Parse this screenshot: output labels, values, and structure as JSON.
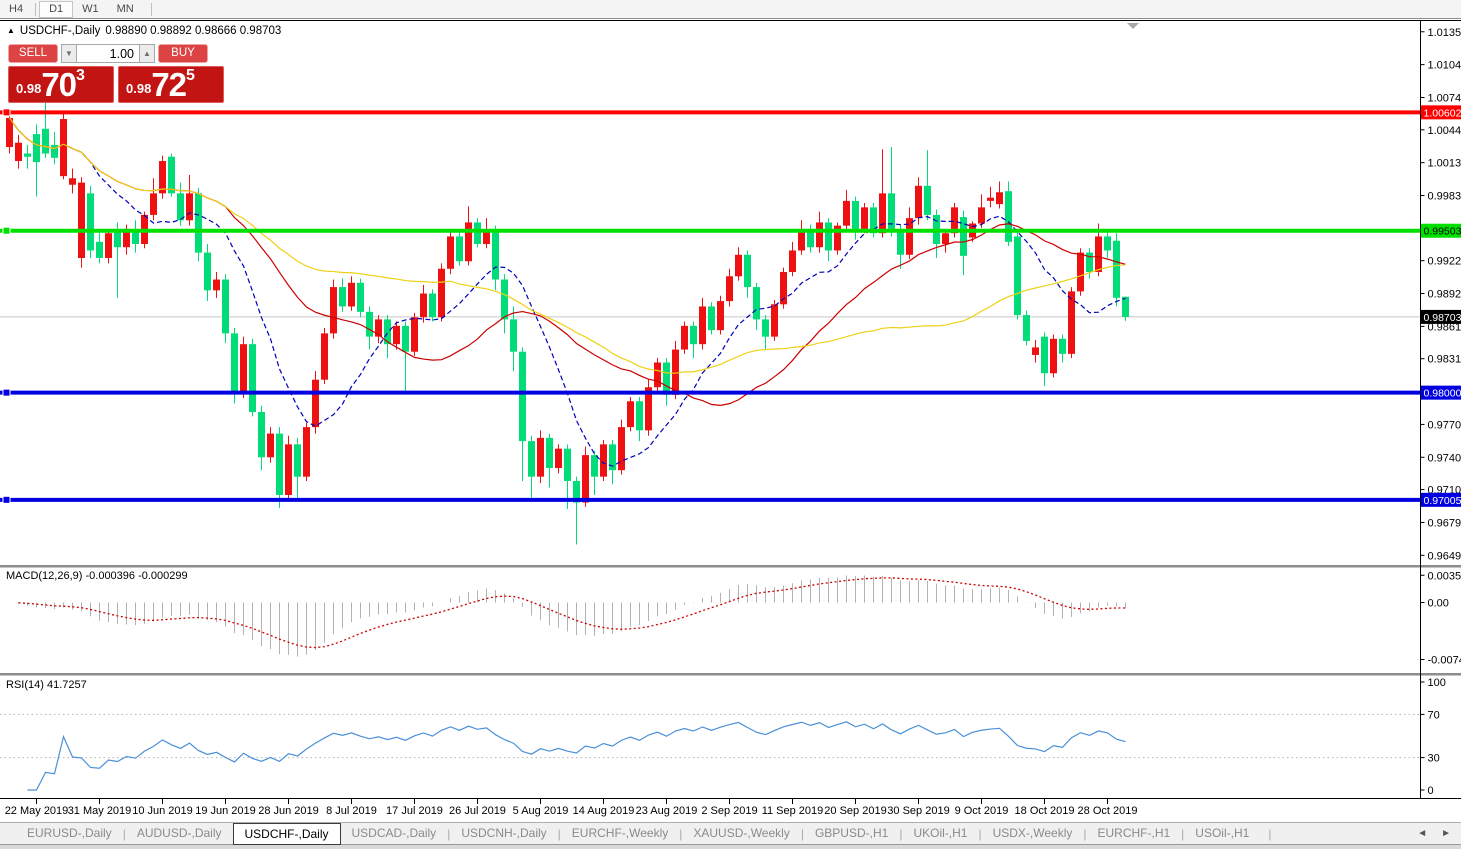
{
  "toolbar": {
    "timeframes": [
      {
        "label": "H4",
        "active": false
      },
      {
        "label": "D1",
        "active": true
      },
      {
        "label": "W1",
        "active": false
      },
      {
        "label": "MN",
        "active": false
      }
    ]
  },
  "chart_header": {
    "collapse_icon": "▲",
    "symbol_title": "USDCHF-,Daily",
    "ohlc_text": "0.98890 0.98892 0.98666 0.98703"
  },
  "trade_widget": {
    "sell_label": "SELL",
    "buy_label": "BUY",
    "volume_value": "1.00",
    "spin_down_icon": "▼",
    "spin_up_icon": "▲",
    "sell_price": {
      "frac": "0.98",
      "big": "70",
      "sup": "3"
    },
    "buy_price": {
      "frac": "0.98",
      "big": "72",
      "sup": "5"
    }
  },
  "price_axis": {
    "ticks": [
      {
        "label": "1.01350",
        "value": 1.0135
      },
      {
        "label": "1.01045",
        "value": 1.01045
      },
      {
        "label": "1.00740",
        "value": 1.0074
      },
      {
        "label": "1.00440",
        "value": 1.0044
      },
      {
        "label": "1.00135",
        "value": 1.00135
      },
      {
        "label": "0.99830",
        "value": 0.9983
      },
      {
        "label": "0.99225",
        "value": 0.99225
      },
      {
        "label": "0.98920",
        "value": 0.9892
      },
      {
        "label": "0.98615",
        "value": 0.98615
      },
      {
        "label": "0.98315",
        "value": 0.98315
      },
      {
        "label": "0.97705",
        "value": 0.97705
      },
      {
        "label": "0.97400",
        "value": 0.974
      },
      {
        "label": "0.97100",
        "value": 0.971
      },
      {
        "label": "0.96795",
        "value": 0.96795
      },
      {
        "label": "0.96490",
        "value": 0.9649
      }
    ],
    "badges": [
      {
        "label": "1.00602",
        "value": 1.00602,
        "bg": "#ff0000",
        "fg": "#ffffff"
      },
      {
        "label": "0.99503",
        "value": 0.99503,
        "bg": "#00e000",
        "fg": "#000000"
      },
      {
        "label": "0.98703",
        "value": 0.98703,
        "bg": "#000000",
        "fg": "#ffffff"
      },
      {
        "label": "0.98000",
        "value": 0.98,
        "bg": "#0000e0",
        "fg": "#ffffff"
      },
      {
        "label": "0.97005",
        "value": 0.97005,
        "bg": "#0000e0",
        "fg": "#ffffff"
      }
    ]
  },
  "macd_panel": {
    "label": "MACD(12,26,9)",
    "values_text": "-0.000396 -0.000299",
    "axis": [
      {
        "label": "0.003574",
        "value": 0.003574
      },
      {
        "label": "0.00",
        "value": 0.0
      },
      {
        "label": "-0.00749",
        "value": -0.00749
      }
    ]
  },
  "rsi_panel": {
    "label": "RSI(14)",
    "value_text": "41.7257",
    "axis": [
      {
        "label": "100",
        "value": 100
      },
      {
        "label": "70",
        "value": 70
      },
      {
        "label": "30",
        "value": 30
      },
      {
        "label": "0",
        "value": 0
      }
    ],
    "levels": [
      70,
      30
    ]
  },
  "date_axis": {
    "labels": [
      {
        "text": "22 May 2019",
        "index": 3
      },
      {
        "text": "31 May 2019",
        "index": 10
      },
      {
        "text": "10 Jun 2019",
        "index": 17
      },
      {
        "text": "19 Jun 2019",
        "index": 24
      },
      {
        "text": "28 Jun 2019",
        "index": 31
      },
      {
        "text": "8 Jul 2019",
        "index": 38
      },
      {
        "text": "17 Jul 2019",
        "index": 45
      },
      {
        "text": "26 Jul 2019",
        "index": 52
      },
      {
        "text": "5 Aug 2019",
        "index": 59
      },
      {
        "text": "14 Aug 2019",
        "index": 66
      },
      {
        "text": "23 Aug 2019",
        "index": 73
      },
      {
        "text": "2 Sep 2019",
        "index": 80
      },
      {
        "text": "11 Sep 2019",
        "index": 87
      },
      {
        "text": "20 Sep 2019",
        "index": 94
      },
      {
        "text": "30 Sep 2019",
        "index": 101
      },
      {
        "text": "9 Oct 2019",
        "index": 108
      },
      {
        "text": "18 Oct 2019",
        "index": 115
      },
      {
        "text": "28 Oct 2019",
        "index": 122
      }
    ]
  },
  "tabs": {
    "items": [
      {
        "label": "EURUSD-,Daily",
        "active": false
      },
      {
        "label": "AUDUSD-,Daily",
        "active": false
      },
      {
        "label": "USDCHF-,Daily",
        "active": true
      },
      {
        "label": "USDCAD-,Daily",
        "active": false
      },
      {
        "label": "USDCNH-,Daily",
        "active": false
      },
      {
        "label": "EURCHF-,Weekly",
        "active": false
      },
      {
        "label": "XAUUSD-,Weekly",
        "active": false
      },
      {
        "label": "GBPUSD-,H1",
        "active": false
      },
      {
        "label": "UKOil-,H1",
        "active": false
      },
      {
        "label": "USDX-,Weekly",
        "active": false
      },
      {
        "label": "EURCHF-,H1",
        "active": false
      },
      {
        "label": "USOil-,H1",
        "active": false
      }
    ],
    "scroll_left_icon": "◄",
    "scroll_right_icon": "►"
  },
  "chart_data": {
    "type": "candlestick",
    "symbol": "USDCHF-",
    "timeframe": "Daily",
    "title": "USDCHF-,Daily",
    "bull_color": "#ee1111",
    "bear_color": "#00dc78",
    "price_range": [
      0.964,
      1.0145
    ],
    "current_price": {
      "value": 0.98703,
      "line_color": "#c8c8c8"
    },
    "hlines": [
      {
        "value": 1.00602,
        "color": "#ff0000",
        "width": 4
      },
      {
        "value": 0.99503,
        "color": "#00e000",
        "width": 4
      },
      {
        "value": 0.98,
        "color": "#0000e0",
        "width": 4
      },
      {
        "value": 0.97005,
        "color": "#0000e0",
        "width": 4
      }
    ],
    "moving_averages": [
      {
        "period": 10,
        "color": "#0000bb",
        "style": "dashed"
      },
      {
        "period": 25,
        "color": "#cc0000",
        "style": "solid"
      },
      {
        "period": 50,
        "color": "#eed117",
        "style": "solid"
      }
    ],
    "macd": {
      "fast": 12,
      "slow": 26,
      "signal": 9,
      "range": [
        -0.009,
        0.0044
      ],
      "hist_color": "#b2b2b2",
      "signal_color": "#cc0000",
      "current_macd": -0.000396,
      "current_signal": -0.000299
    },
    "rsi": {
      "period": 14,
      "range": [
        0,
        100
      ],
      "line_color": "#4a90d9",
      "current": 41.7257
    },
    "candles": [
      [
        1.0028,
        1.0061,
        1.0022,
        1.0055
      ],
      [
        1.0015,
        1.0039,
        1.0008,
        1.0032
      ],
      [
        1.0022,
        1.003,
        1.0008,
        1.0019
      ],
      [
        1.004,
        1.0049,
        0.9982,
        1.0014
      ],
      [
        1.0045,
        1.007,
        1.0018,
        1.0022
      ],
      [
        1.003,
        1.0042,
        1.0012,
        1.0018
      ],
      [
        1.0001,
        1.0061,
        0.9998,
        1.0054
      ],
      [
        0.9993,
        1.0008,
        0.9985,
        0.9999
      ],
      [
        0.9925,
        1.0,
        0.9916,
        0.9995
      ],
      [
        0.9985,
        0.9992,
        0.9925,
        0.9932
      ],
      [
        0.994,
        0.9952,
        0.992,
        0.9925
      ],
      [
        0.9925,
        0.9952,
        0.992,
        0.9948
      ],
      [
        0.995,
        0.9958,
        0.9888,
        0.9935
      ],
      [
        0.9935,
        0.9956,
        0.9928,
        0.9952
      ],
      [
        0.9952,
        0.996,
        0.993,
        0.9938
      ],
      [
        0.9938,
        0.9968,
        0.9934,
        0.9965
      ],
      [
        0.9965,
        0.9999,
        0.996,
        0.9985
      ],
      [
        0.9985,
        1.002,
        0.998,
        1.0015
      ],
      [
        1.0019,
        1.0022,
        0.9982,
        0.9985
      ],
      [
        0.9985,
        0.9995,
        0.9955,
        0.996
      ],
      [
        0.996,
        1.0002,
        0.9955,
        0.9985
      ],
      [
        0.9985,
        0.999,
        0.9922,
        0.993
      ],
      [
        0.993,
        0.9938,
        0.9885,
        0.9895
      ],
      [
        0.9895,
        0.9912,
        0.9888,
        0.9905
      ],
      [
        0.9905,
        0.991,
        0.9846,
        0.9855
      ],
      [
        0.9855,
        0.986,
        0.979,
        0.98
      ],
      [
        0.98,
        0.9852,
        0.9795,
        0.9845
      ],
      [
        0.9845,
        0.985,
        0.9778,
        0.9782
      ],
      [
        0.9782,
        0.9788,
        0.9728,
        0.974
      ],
      [
        0.974,
        0.9768,
        0.9735,
        0.9762
      ],
      [
        0.9762,
        0.9768,
        0.9693,
        0.9705
      ],
      [
        0.9705,
        0.976,
        0.97,
        0.9752
      ],
      [
        0.9752,
        0.9758,
        0.9702,
        0.9722
      ],
      [
        0.9722,
        0.9772,
        0.9718,
        0.9768
      ],
      [
        0.9768,
        0.982,
        0.9762,
        0.9812
      ],
      [
        0.9812,
        0.986,
        0.9808,
        0.9855
      ],
      [
        0.9855,
        0.9905,
        0.985,
        0.9898
      ],
      [
        0.9898,
        0.9906,
        0.9875,
        0.988
      ],
      [
        0.988,
        0.9908,
        0.9876,
        0.9902
      ],
      [
        0.9902,
        0.9906,
        0.987,
        0.9875
      ],
      [
        0.9875,
        0.988,
        0.984,
        0.9852
      ],
      [
        0.9852,
        0.9872,
        0.9846,
        0.9868
      ],
      [
        0.9868,
        0.9872,
        0.9832,
        0.9845
      ],
      [
        0.9845,
        0.9866,
        0.984,
        0.9862
      ],
      [
        0.9862,
        0.9866,
        0.98,
        0.9838
      ],
      [
        0.9838,
        0.9874,
        0.9834,
        0.987
      ],
      [
        0.987,
        0.99,
        0.9865,
        0.9892
      ],
      [
        0.9892,
        0.9896,
        0.9866,
        0.987
      ],
      [
        0.987,
        0.992,
        0.9866,
        0.9915
      ],
      [
        0.9915,
        0.9952,
        0.991,
        0.9945
      ],
      [
        0.9945,
        0.995,
        0.9918,
        0.9922
      ],
      [
        0.9922,
        0.9973,
        0.9918,
        0.9958
      ],
      [
        0.9958,
        0.9962,
        0.9935,
        0.9938
      ],
      [
        0.9938,
        0.9962,
        0.9934,
        0.995
      ],
      [
        0.995,
        0.9955,
        0.9895,
        0.9905
      ],
      [
        0.9905,
        0.991,
        0.9855,
        0.9868
      ],
      [
        0.9868,
        0.988,
        0.982,
        0.9838
      ],
      [
        0.9838,
        0.9842,
        0.9718,
        0.9755
      ],
      [
        0.9755,
        0.976,
        0.97,
        0.9722
      ],
      [
        0.9722,
        0.9765,
        0.9716,
        0.9758
      ],
      [
        0.9758,
        0.9762,
        0.9712,
        0.973
      ],
      [
        0.973,
        0.9752,
        0.9725,
        0.9748
      ],
      [
        0.9748,
        0.9752,
        0.9692,
        0.9718
      ],
      [
        0.9718,
        0.9722,
        0.9659,
        0.9698
      ],
      [
        0.9698,
        0.975,
        0.9694,
        0.9742
      ],
      [
        0.9742,
        0.9746,
        0.9705,
        0.9722
      ],
      [
        0.9722,
        0.9756,
        0.9718,
        0.9752
      ],
      [
        0.9752,
        0.9756,
        0.9715,
        0.9728
      ],
      [
        0.9728,
        0.9775,
        0.9724,
        0.9768
      ],
      [
        0.9768,
        0.9796,
        0.9764,
        0.9792
      ],
      [
        0.9792,
        0.9796,
        0.9755,
        0.9765
      ],
      [
        0.9765,
        0.9812,
        0.976,
        0.9805
      ],
      [
        0.9805,
        0.9832,
        0.98,
        0.9828
      ],
      [
        0.9828,
        0.9832,
        0.9788,
        0.9798
      ],
      [
        0.9798,
        0.9848,
        0.9794,
        0.984
      ],
      [
        0.984,
        0.9866,
        0.9836,
        0.9862
      ],
      [
        0.9862,
        0.9866,
        0.9832,
        0.9845
      ],
      [
        0.9845,
        0.9888,
        0.984,
        0.988
      ],
      [
        0.988,
        0.9884,
        0.9854,
        0.9858
      ],
      [
        0.9858,
        0.989,
        0.9854,
        0.9885
      ],
      [
        0.9885,
        0.9915,
        0.988,
        0.9908
      ],
      [
        0.9908,
        0.9935,
        0.9904,
        0.9928
      ],
      [
        0.9928,
        0.9932,
        0.9888,
        0.9898
      ],
      [
        0.9898,
        0.9902,
        0.9858,
        0.9868
      ],
      [
        0.9868,
        0.9872,
        0.984,
        0.9852
      ],
      [
        0.9852,
        0.9886,
        0.9848,
        0.9882
      ],
      [
        0.9882,
        0.9916,
        0.9878,
        0.9912
      ],
      [
        0.9912,
        0.994,
        0.9908,
        0.9932
      ],
      [
        0.9932,
        0.996,
        0.9928,
        0.9952
      ],
      [
        0.9952,
        0.9956,
        0.993,
        0.9935
      ],
      [
        0.9935,
        0.9968,
        0.993,
        0.9958
      ],
      [
        0.9958,
        0.9962,
        0.9922,
        0.9932
      ],
      [
        0.9932,
        0.9958,
        0.9928,
        0.9955
      ],
      [
        0.9955,
        0.9988,
        0.995,
        0.9978
      ],
      [
        0.9978,
        0.9982,
        0.9942,
        0.9952
      ],
      [
        0.9952,
        0.9976,
        0.9948,
        0.9972
      ],
      [
        0.9972,
        0.9976,
        0.9944,
        0.9948
      ],
      [
        0.9948,
        1.0026,
        0.9944,
        0.9985
      ],
      [
        0.9985,
        1.0028,
        0.9945,
        0.9952
      ],
      [
        0.9952,
        0.9956,
        0.9915,
        0.9928
      ],
      [
        0.9928,
        0.9972,
        0.9924,
        0.9962
      ],
      [
        0.9962,
        1.0,
        0.9956,
        0.9992
      ],
      [
        0.9992,
        1.0025,
        0.996,
        0.9965
      ],
      [
        0.9965,
        0.997,
        0.9925,
        0.9938
      ],
      [
        0.9938,
        0.9952,
        0.993,
        0.9948
      ],
      [
        0.9948,
        0.9976,
        0.9944,
        0.9972
      ],
      [
        0.9963,
        0.9969,
        0.9909,
        0.9927
      ],
      [
        0.9944,
        0.9959,
        0.994,
        0.9957
      ],
      [
        0.9957,
        0.9984,
        0.9953,
        0.9972
      ],
      [
        0.9978,
        0.9991,
        0.9972,
        0.9981
      ],
      [
        0.9975,
        0.9996,
        0.9971,
        0.9986
      ],
      [
        0.9987,
        0.9996,
        0.9936,
        0.994
      ],
      [
        0.9945,
        0.995,
        0.9868,
        0.9872
      ],
      [
        0.9872,
        0.9876,
        0.9844,
        0.9848
      ],
      [
        0.9835,
        0.9849,
        0.9828,
        0.9842
      ],
      [
        0.9852,
        0.9856,
        0.9806,
        0.9818
      ],
      [
        0.9818,
        0.9854,
        0.9814,
        0.985
      ],
      [
        0.985,
        0.9854,
        0.9828,
        0.9836
      ],
      [
        0.9836,
        0.9898,
        0.9832,
        0.9894
      ],
      [
        0.9894,
        0.9934,
        0.989,
        0.993
      ],
      [
        0.993,
        0.9934,
        0.9906,
        0.9912
      ],
      [
        0.9912,
        0.9957,
        0.9908,
        0.9945
      ],
      [
        0.9945,
        0.9949,
        0.9925,
        0.9932
      ],
      [
        0.9941,
        0.9948,
        0.988,
        0.9888
      ],
      [
        0.9889,
        0.98892,
        0.98666,
        0.98703
      ]
    ]
  }
}
